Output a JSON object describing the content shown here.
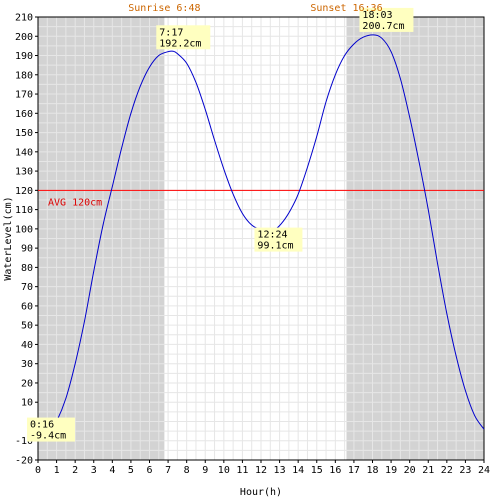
{
  "chart_data": {
    "type": "line",
    "xlabel": "Hour(h)",
    "ylabel": "WaterLevel(cm)",
    "xlim": [
      0,
      24
    ],
    "ylim": [
      -20,
      210
    ],
    "x_ticks": [
      "0",
      "1",
      "2",
      "3",
      "4",
      "5",
      "6",
      "7",
      "8",
      "9",
      "10",
      "11",
      "12",
      "13",
      "14",
      "15",
      "16",
      "17",
      "18",
      "19",
      "20",
      "21",
      "22",
      "23",
      "24"
    ],
    "y_ticks": [
      "-20",
      "-10",
      "0",
      "10",
      "20",
      "30",
      "40",
      "50",
      "60",
      "70",
      "80",
      "90",
      "100",
      "110",
      "120",
      "130",
      "140",
      "150",
      "160",
      "170",
      "180",
      "190",
      "200",
      "210"
    ],
    "grid": true,
    "series": [
      {
        "color": "#0000cc",
        "x": [
          0,
          0.27,
          0.5,
          1.0,
          1.5,
          2.0,
          2.5,
          3.0,
          3.5,
          4.0,
          4.5,
          5.0,
          5.5,
          6.0,
          6.5,
          7.0,
          7.28,
          7.5,
          8.0,
          8.5,
          9.0,
          9.5,
          10.0,
          10.5,
          11.0,
          11.5,
          12.0,
          12.4,
          12.8,
          13.2,
          13.6,
          14.0,
          14.5,
          15.0,
          15.5,
          16.0,
          16.5,
          17.0,
          17.5,
          18.05,
          18.5,
          19.0,
          19.5,
          20.0,
          20.5,
          21.0,
          21.5,
          22.0,
          22.5,
          23.0,
          23.5,
          24.0
        ],
        "y": [
          -6,
          -9.4,
          -8,
          0,
          12,
          30,
          52,
          78,
          102,
          122,
          142,
          160,
          174,
          184,
          190,
          192,
          192.2,
          191,
          186,
          176,
          162,
          146,
          131,
          118,
          108,
          102,
          99.5,
          99.1,
          100,
          104,
          110,
          118,
          132,
          148,
          166,
          180,
          190,
          196,
          199.5,
          200.7,
          199,
          192,
          178,
          158,
          135,
          110,
          82,
          56,
          34,
          16,
          3,
          -4
        ]
      }
    ],
    "shaded_regions": [
      {
        "from": 0,
        "to": 6.8,
        "color": "#d3d3d3"
      },
      {
        "from": 16.6,
        "to": 24,
        "color": "#d3d3d3"
      }
    ],
    "top_labels": {
      "sunrise": "Sunrise 6:48",
      "sunset": "Sunset 16:36",
      "sunrise_x": 6.8,
      "sunset_x": 16.6
    },
    "average": {
      "value": 120,
      "label": "AVG 120cm",
      "color": "#ff0000"
    },
    "annotations": [
      {
        "x": 0.27,
        "y": -9.4,
        "time": "0:16",
        "level": "-9.4cm"
      },
      {
        "x": 7.28,
        "y": 192.2,
        "time": "7:17",
        "level": "192.2cm"
      },
      {
        "x": 12.4,
        "y": 99.1,
        "time": "12:24",
        "level": "99.1cm"
      },
      {
        "x": 18.05,
        "y": 200.7,
        "time": "18:03",
        "level": "200.7cm"
      }
    ]
  }
}
